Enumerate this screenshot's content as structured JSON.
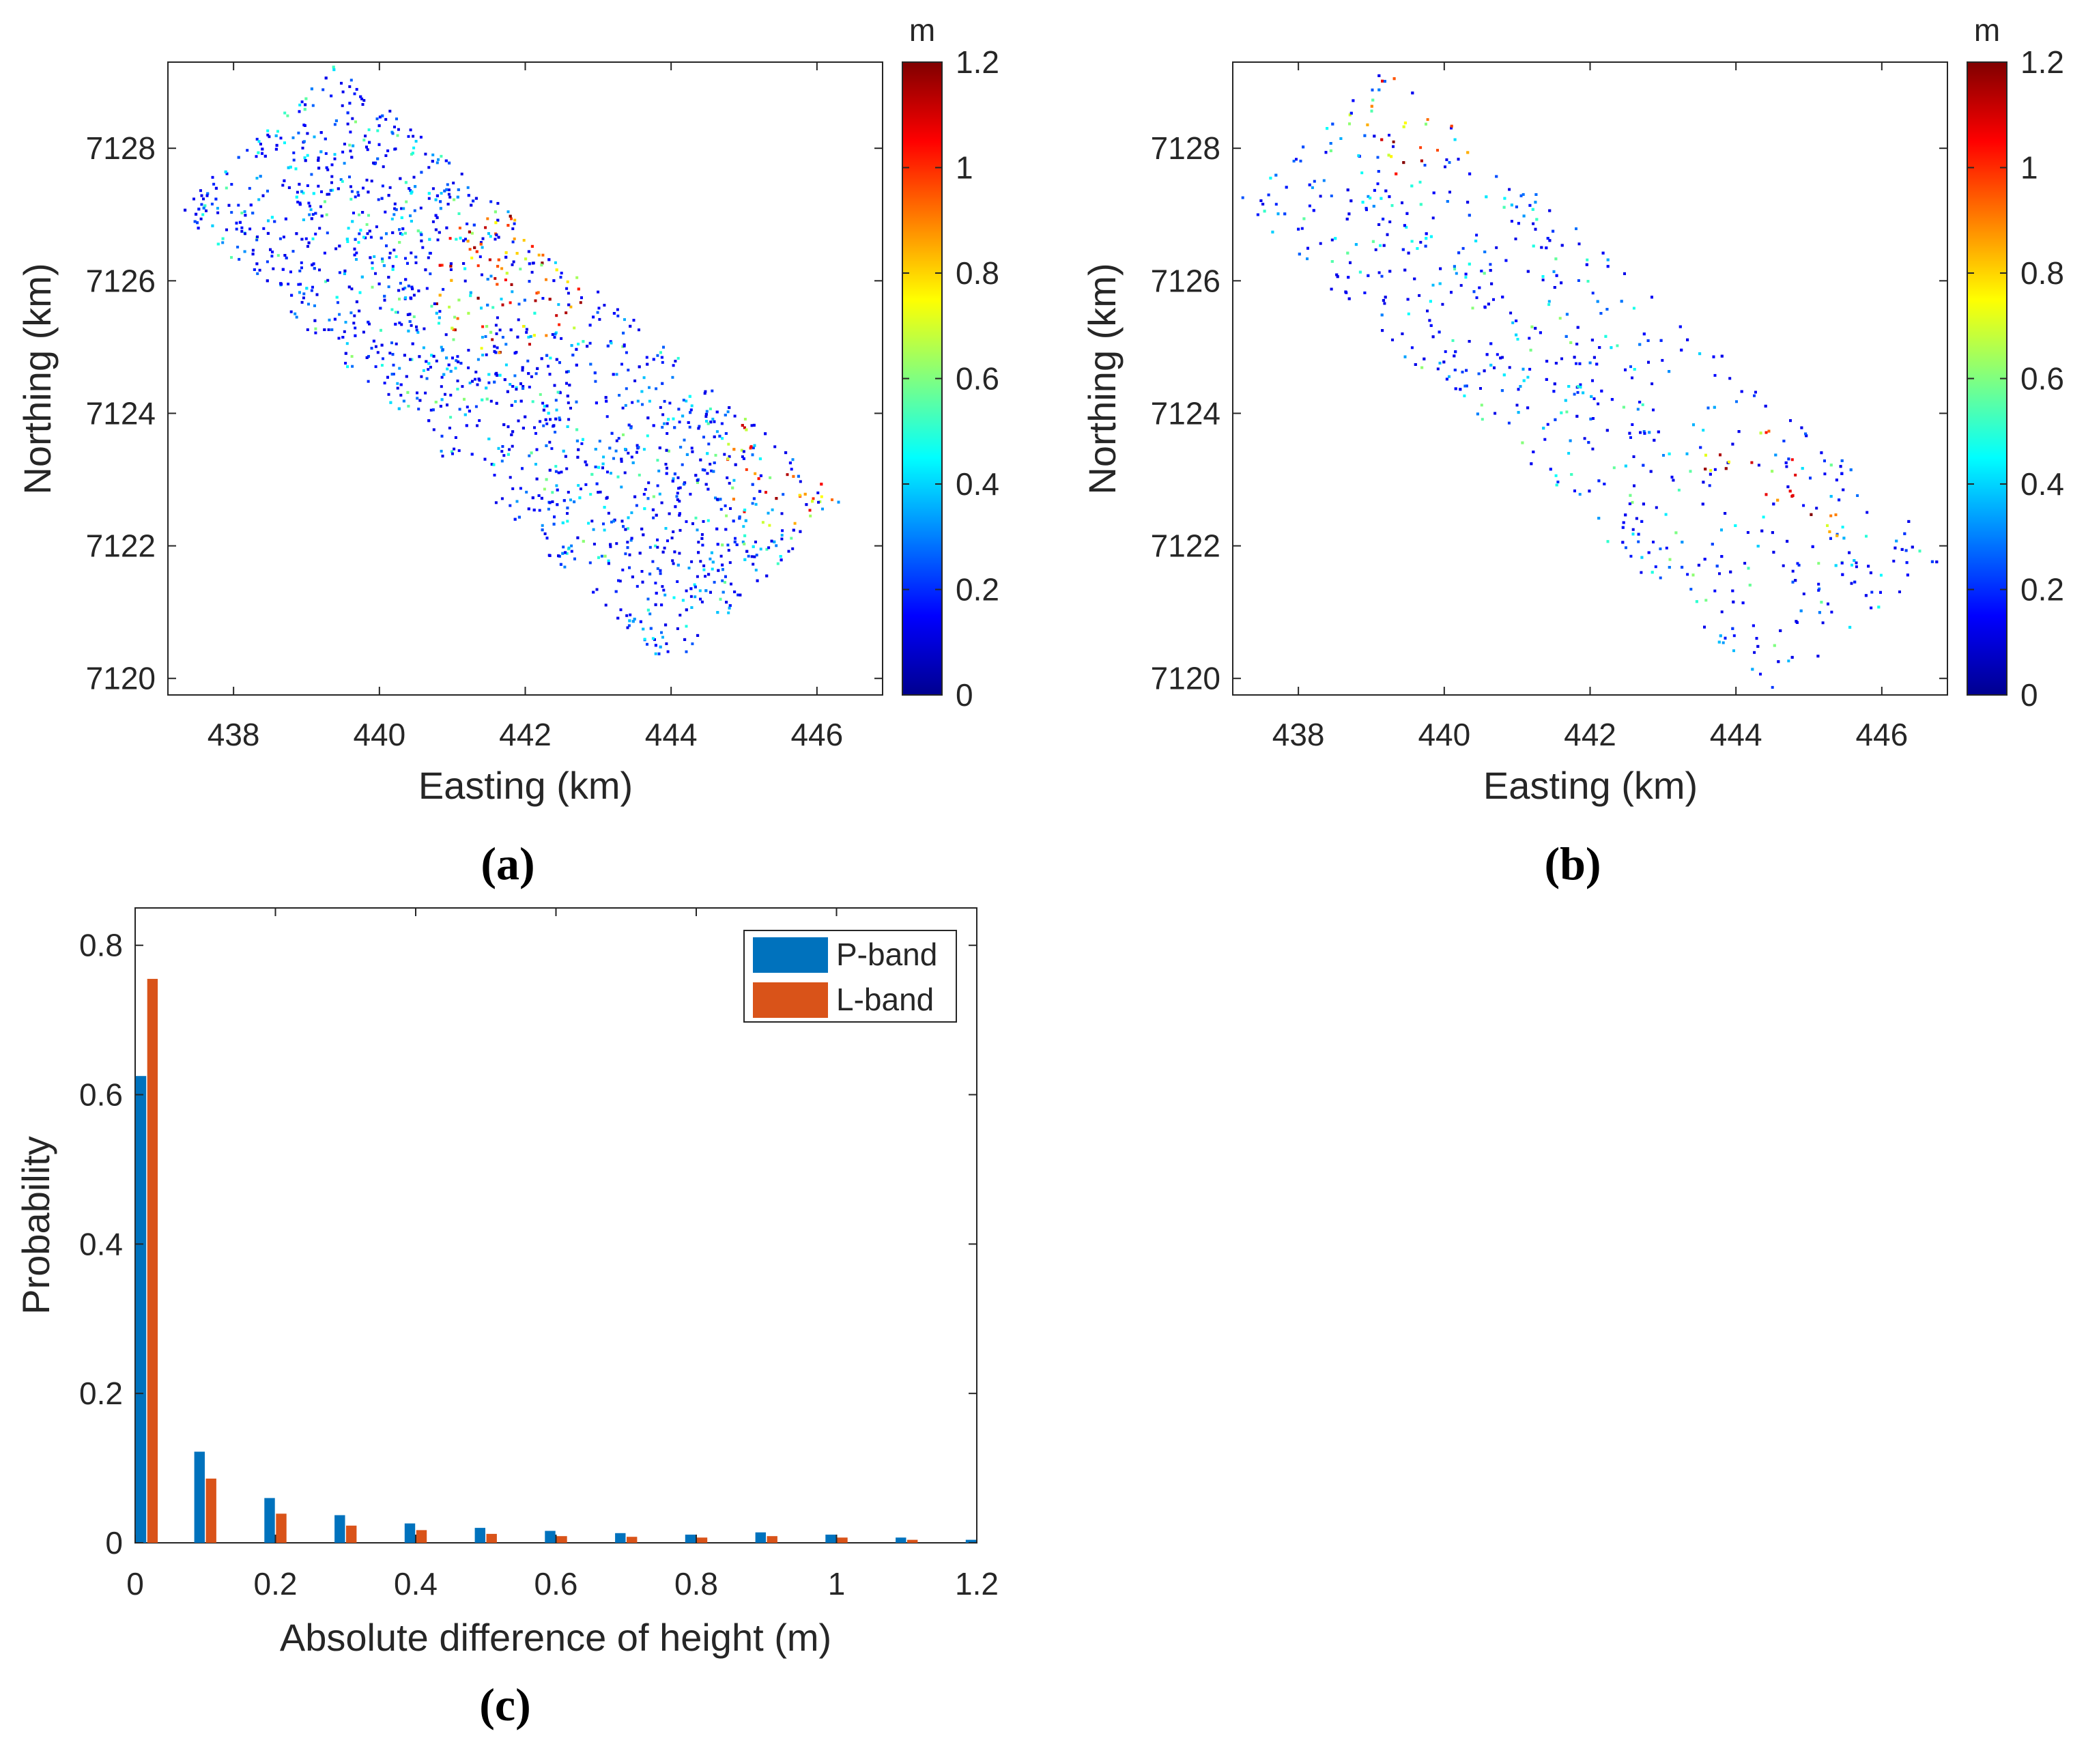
{
  "colors": {
    "p_band": "#0072BD",
    "l_band": "#D95319",
    "axis": "#262626",
    "colormap": [
      "#00008F",
      "#0000FF",
      "#0080FF",
      "#00FFFF",
      "#80FF80",
      "#FFFF00",
      "#FF8000",
      "#FF0000",
      "#800000"
    ]
  },
  "chart_data": [
    {
      "type": "heatmap",
      "panel_label": "(a)",
      "xlabel": "Easting (km)",
      "ylabel": "Northing (km)",
      "xlim": [
        437.1,
        446.9
      ],
      "ylim": [
        7119.75,
        7129.3
      ],
      "x_ticks": [
        "438",
        "440",
        "442",
        "444",
        "446"
      ],
      "y_ticks": [
        "7120",
        "7122",
        "7124",
        "7126",
        "7128"
      ],
      "colorbar": {
        "label": "m",
        "range": [
          0,
          1.2
        ],
        "ticks": [
          "0",
          "0.2",
          "0.4",
          "0.6",
          "0.8",
          "1",
          "1.2"
        ]
      },
      "footprint": [
        [
          439.4,
          7129.3
        ],
        [
          446.35,
          7122.7
        ],
        [
          444.0,
          7120.15
        ],
        [
          437.2,
          7127.1
        ]
      ]
    },
    {
      "type": "heatmap",
      "panel_label": "(b)",
      "xlabel": "Easting (km)",
      "ylabel": "Northing (km)",
      "xlim": [
        437.1,
        446.9
      ],
      "ylim": [
        7119.75,
        7129.3
      ],
      "x_ticks": [
        "438",
        "440",
        "442",
        "444",
        "446"
      ],
      "y_ticks": [
        "7120",
        "7122",
        "7124",
        "7126",
        "7128"
      ],
      "colorbar": {
        "label": "m",
        "range": [
          0,
          1.2
        ],
        "ticks": [
          "0",
          "0.2",
          "0.4",
          "0.6",
          "0.8",
          "1",
          "1.2"
        ]
      },
      "footprint": [
        [
          439.2,
          7129.3
        ],
        [
          446.9,
          7121.9
        ],
        [
          444.5,
          7119.8
        ],
        [
          437.1,
          7127.2
        ]
      ]
    },
    {
      "type": "bar",
      "panel_label": "(c)",
      "xlabel": "Absolute difference of height (m)",
      "ylabel": "Probability",
      "xlim": [
        0,
        1.2
      ],
      "ylim": [
        0,
        0.85
      ],
      "x_ticks": [
        "0",
        "0.2",
        "0.4",
        "0.6",
        "0.8",
        "1",
        "1.2"
      ],
      "y_ticks": [
        "0",
        "0.2",
        "0.4",
        "0.6",
        "0.8"
      ],
      "x": [
        0,
        0.1,
        0.2,
        0.3,
        0.4,
        0.5,
        0.6,
        0.7,
        0.8,
        0.9,
        1.0,
        1.1,
        1.2
      ],
      "legend_position": "top-right",
      "series": [
        {
          "name": "P-band",
          "values": [
            0.625,
            0.122,
            0.06,
            0.037,
            0.026,
            0.02,
            0.016,
            0.013,
            0.011,
            0.014,
            0.011,
            0.007,
            0.004
          ]
        },
        {
          "name": "L-band",
          "values": [
            0.755,
            0.086,
            0.039,
            0.023,
            0.017,
            0.012,
            0.009,
            0.008,
            0.007,
            0.009,
            0.007,
            0.004,
            0.0
          ]
        }
      ]
    }
  ]
}
